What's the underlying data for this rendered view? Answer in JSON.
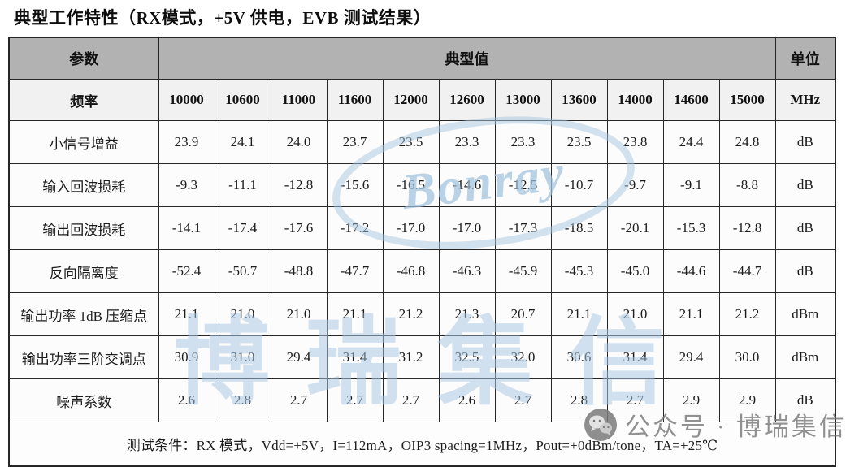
{
  "title": "典型工作特性（RX模式，+5V 供电，EVB 测试结果）",
  "table": {
    "header": {
      "param": "参数",
      "typical": "典型值",
      "unit": "单位"
    },
    "frequencies": {
      "label": "频率",
      "values": [
        "10000",
        "10600",
        "11000",
        "11600",
        "12000",
        "12600",
        "13000",
        "13600",
        "14000",
        "14600",
        "15000"
      ],
      "unit": "MHz"
    },
    "rows": [
      {
        "label": "小信号增益",
        "values": [
          "23.9",
          "24.1",
          "24.0",
          "23.7",
          "23.5",
          "23.3",
          "23.3",
          "23.5",
          "23.8",
          "24.4",
          "24.8"
        ],
        "unit": "dB"
      },
      {
        "label": "输入回波损耗",
        "values": [
          "-9.3",
          "-11.1",
          "-12.8",
          "-15.6",
          "-16.5",
          "-14.6",
          "-12.5",
          "-10.7",
          "-9.7",
          "-9.1",
          "-8.8"
        ],
        "unit": "dB"
      },
      {
        "label": "输出回波损耗",
        "values": [
          "-14.1",
          "-17.4",
          "-17.6",
          "-17.2",
          "-17.0",
          "-17.0",
          "-17.3",
          "-18.5",
          "-20.1",
          "-15.3",
          "-12.8"
        ],
        "unit": "dB"
      },
      {
        "label": "反向隔离度",
        "values": [
          "-52.4",
          "-50.7",
          "-48.8",
          "-47.7",
          "-46.8",
          "-46.3",
          "-45.9",
          "-45.3",
          "-45.0",
          "-44.6",
          "-44.7"
        ],
        "unit": "dB"
      },
      {
        "label": "输出功率 1dB 压缩点",
        "values": [
          "21.1",
          "21.0",
          "21.0",
          "21.1",
          "21.2",
          "21.3",
          "20.7",
          "21.1",
          "21.0",
          "21.1",
          "21.2"
        ],
        "unit": "dBm"
      },
      {
        "label": "输出功率三阶交调点",
        "values": [
          "30.9",
          "31.0",
          "29.4",
          "31.4",
          "31.2",
          "32.5",
          "32.0",
          "30.6",
          "31.4",
          "29.4",
          "30.0"
        ],
        "unit": "dBm"
      },
      {
        "label": "噪声系数",
        "values": [
          "2.6",
          "2.8",
          "2.7",
          "2.7",
          "2.7",
          "2.6",
          "2.7",
          "2.8",
          "2.7",
          "2.9",
          "2.9"
        ],
        "unit": "dB"
      }
    ],
    "test_conditions": "测试条件：RX 模式，Vdd=+5V，I=112mA，OIP3 spacing=1MHz，Pout=+0dBm/tone，TA=+25℃"
  },
  "watermarks": {
    "logo_text": "Bonray",
    "brand_text": "博瑞集信",
    "wechat_label": "公众号 · 博瑞集信",
    "wechat_icon": "wechat-icon"
  },
  "colors": {
    "header_bg": "#b2b2b2",
    "freq_row_bg": "#f1f1f1",
    "data_row_bg": "#fcfcfc",
    "border": "#262626",
    "watermark_blue": "#a8c6e1",
    "watermark_gray": "#767676"
  }
}
